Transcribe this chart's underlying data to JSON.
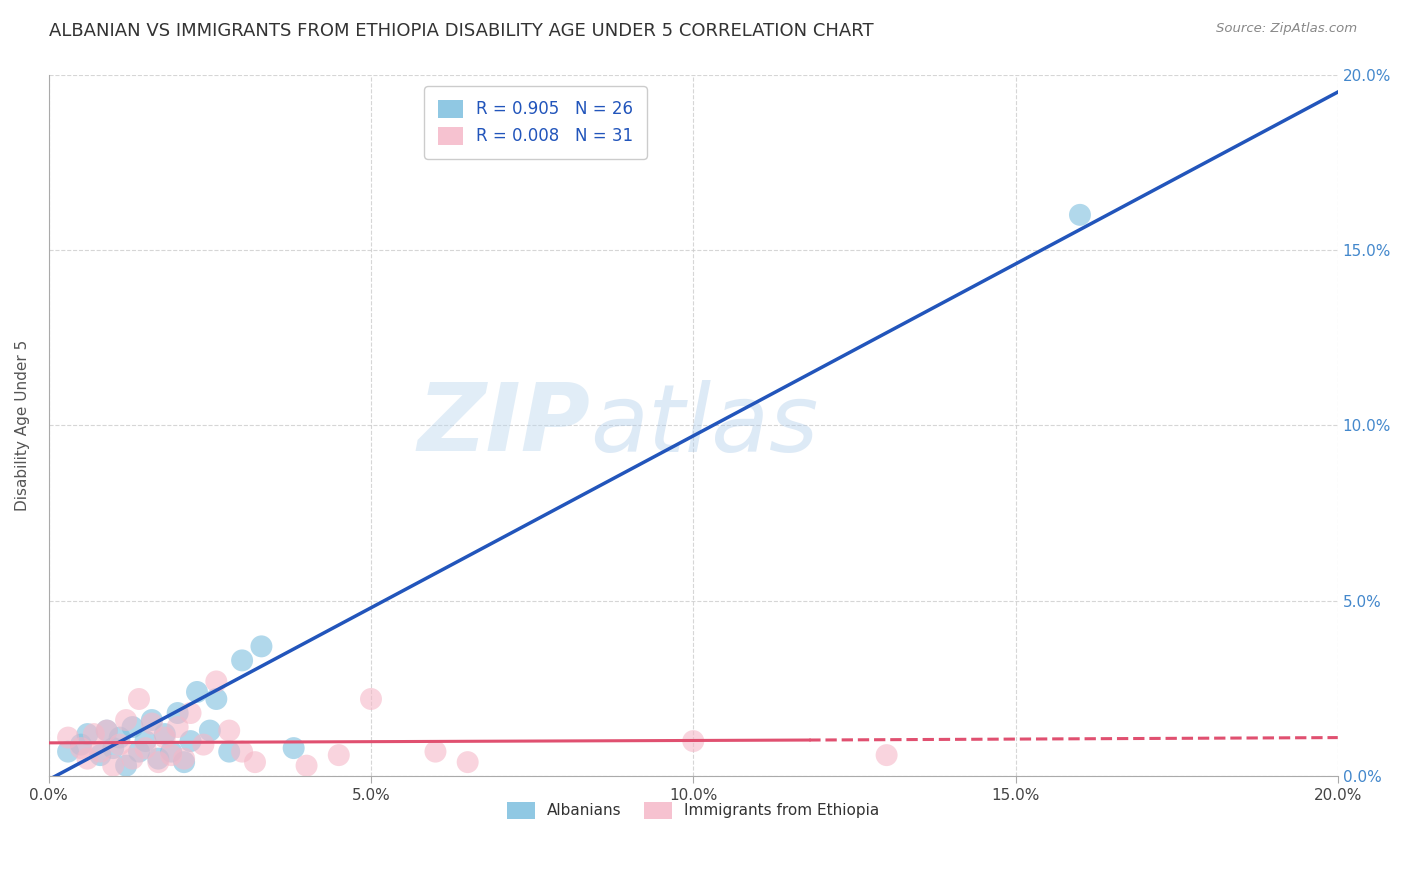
{
  "title": "ALBANIAN VS IMMIGRANTS FROM ETHIOPIA DISABILITY AGE UNDER 5 CORRELATION CHART",
  "source": "Source: ZipAtlas.com",
  "ylabel": "Disability Age Under 5",
  "xlim": [
    0.0,
    0.2
  ],
  "ylim": [
    0.0,
    0.2
  ],
  "xtick_vals": [
    0.0,
    0.05,
    0.1,
    0.15,
    0.2
  ],
  "ytick_vals": [
    0.0,
    0.05,
    0.1,
    0.15,
    0.2
  ],
  "watermark_zip": "ZIP",
  "watermark_atlas": "atlas",
  "legend_blue_r": "R = 0.905",
  "legend_blue_n": "N = 26",
  "legend_pink_r": "R = 0.008",
  "legend_pink_n": "N = 31",
  "blue_color": "#7dbfdf",
  "pink_color": "#f5b8c8",
  "line_blue_color": "#2255bb",
  "line_pink_color": "#e05070",
  "albanian_label": "Albanians",
  "ethiopia_label": "Immigrants from Ethiopia",
  "blue_scatter_x": [
    0.003,
    0.005,
    0.006,
    0.008,
    0.009,
    0.01,
    0.011,
    0.012,
    0.013,
    0.014,
    0.015,
    0.016,
    0.017,
    0.018,
    0.019,
    0.02,
    0.021,
    0.022,
    0.023,
    0.025,
    0.026,
    0.028,
    0.03,
    0.033,
    0.038,
    0.16
  ],
  "blue_scatter_y": [
    0.007,
    0.009,
    0.012,
    0.006,
    0.013,
    0.008,
    0.011,
    0.003,
    0.014,
    0.007,
    0.01,
    0.016,
    0.005,
    0.012,
    0.007,
    0.018,
    0.004,
    0.01,
    0.024,
    0.013,
    0.022,
    0.007,
    0.033,
    0.037,
    0.008,
    0.16
  ],
  "pink_scatter_x": [
    0.003,
    0.005,
    0.006,
    0.007,
    0.008,
    0.009,
    0.01,
    0.011,
    0.012,
    0.013,
    0.014,
    0.015,
    0.016,
    0.017,
    0.018,
    0.019,
    0.02,
    0.021,
    0.022,
    0.024,
    0.026,
    0.028,
    0.03,
    0.032,
    0.04,
    0.045,
    0.05,
    0.06,
    0.065,
    0.1,
    0.13
  ],
  "pink_scatter_y": [
    0.011,
    0.008,
    0.005,
    0.012,
    0.007,
    0.013,
    0.003,
    0.009,
    0.016,
    0.005,
    0.022,
    0.008,
    0.015,
    0.004,
    0.011,
    0.006,
    0.014,
    0.005,
    0.018,
    0.009,
    0.027,
    0.013,
    0.007,
    0.004,
    0.003,
    0.006,
    0.022,
    0.007,
    0.004,
    0.01,
    0.006
  ],
  "blue_line_x": [
    0.0,
    0.2
  ],
  "blue_line_y": [
    -0.001,
    0.195
  ],
  "pink_line_x": [
    0.0,
    0.155
  ],
  "pink_line_y": [
    0.0095,
    0.0105
  ],
  "grid_color": "#cccccc",
  "background_color": "#ffffff",
  "title_fontsize": 13,
  "label_fontsize": 11,
  "tick_fontsize": 11,
  "legend_fontsize": 12,
  "right_tick_color": "#4488cc",
  "bottom_tick_color": "#444444"
}
